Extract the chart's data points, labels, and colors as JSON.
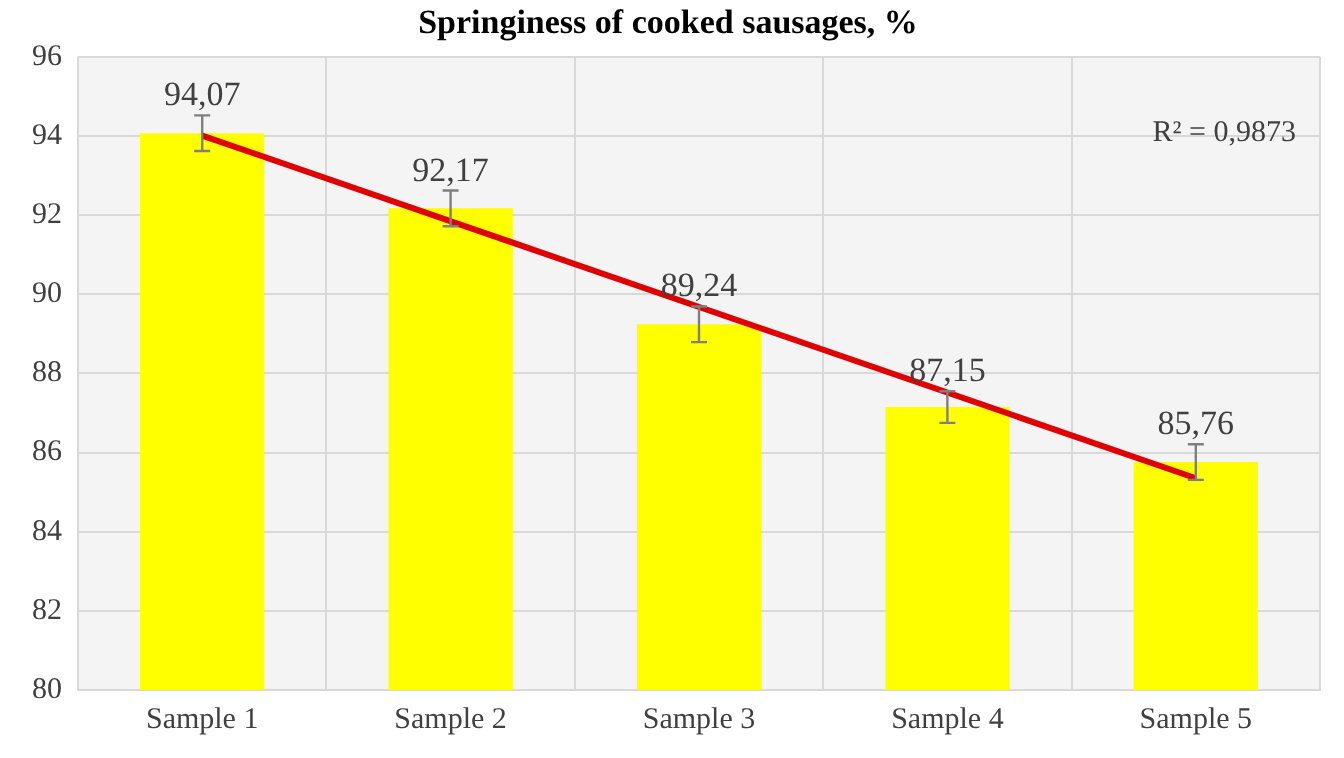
{
  "chart_data": {
    "type": "bar",
    "title": "Springiness of cooked sausages, %",
    "categories": [
      "Sample 1",
      "Sample 2",
      "Sample 3",
      "Sample 4",
      "Sample 5"
    ],
    "series": [
      {
        "color": "#ffff00",
        "values": [
          94.07,
          92.17,
          89.24,
          87.15,
          85.76
        ],
        "errors": [
          0.45,
          0.45,
          0.45,
          0.4,
          0.45
        ],
        "value_labels": [
          "94,07",
          "92,17",
          "89,24",
          "87,15",
          "85,76"
        ]
      },
      {
        "type": "line",
        "color": "#e00000",
        "x": [
          "Sample 1",
          "Sample 5"
        ],
        "values": [
          94.01,
          85.35
        ]
      }
    ],
    "ylim": [
      80,
      96
    ],
    "yticks": [
      80,
      82,
      84,
      86,
      88,
      90,
      92,
      94,
      96
    ],
    "grid": true,
    "legend": false,
    "annotations": [
      "R² = 0,9873"
    ]
  }
}
